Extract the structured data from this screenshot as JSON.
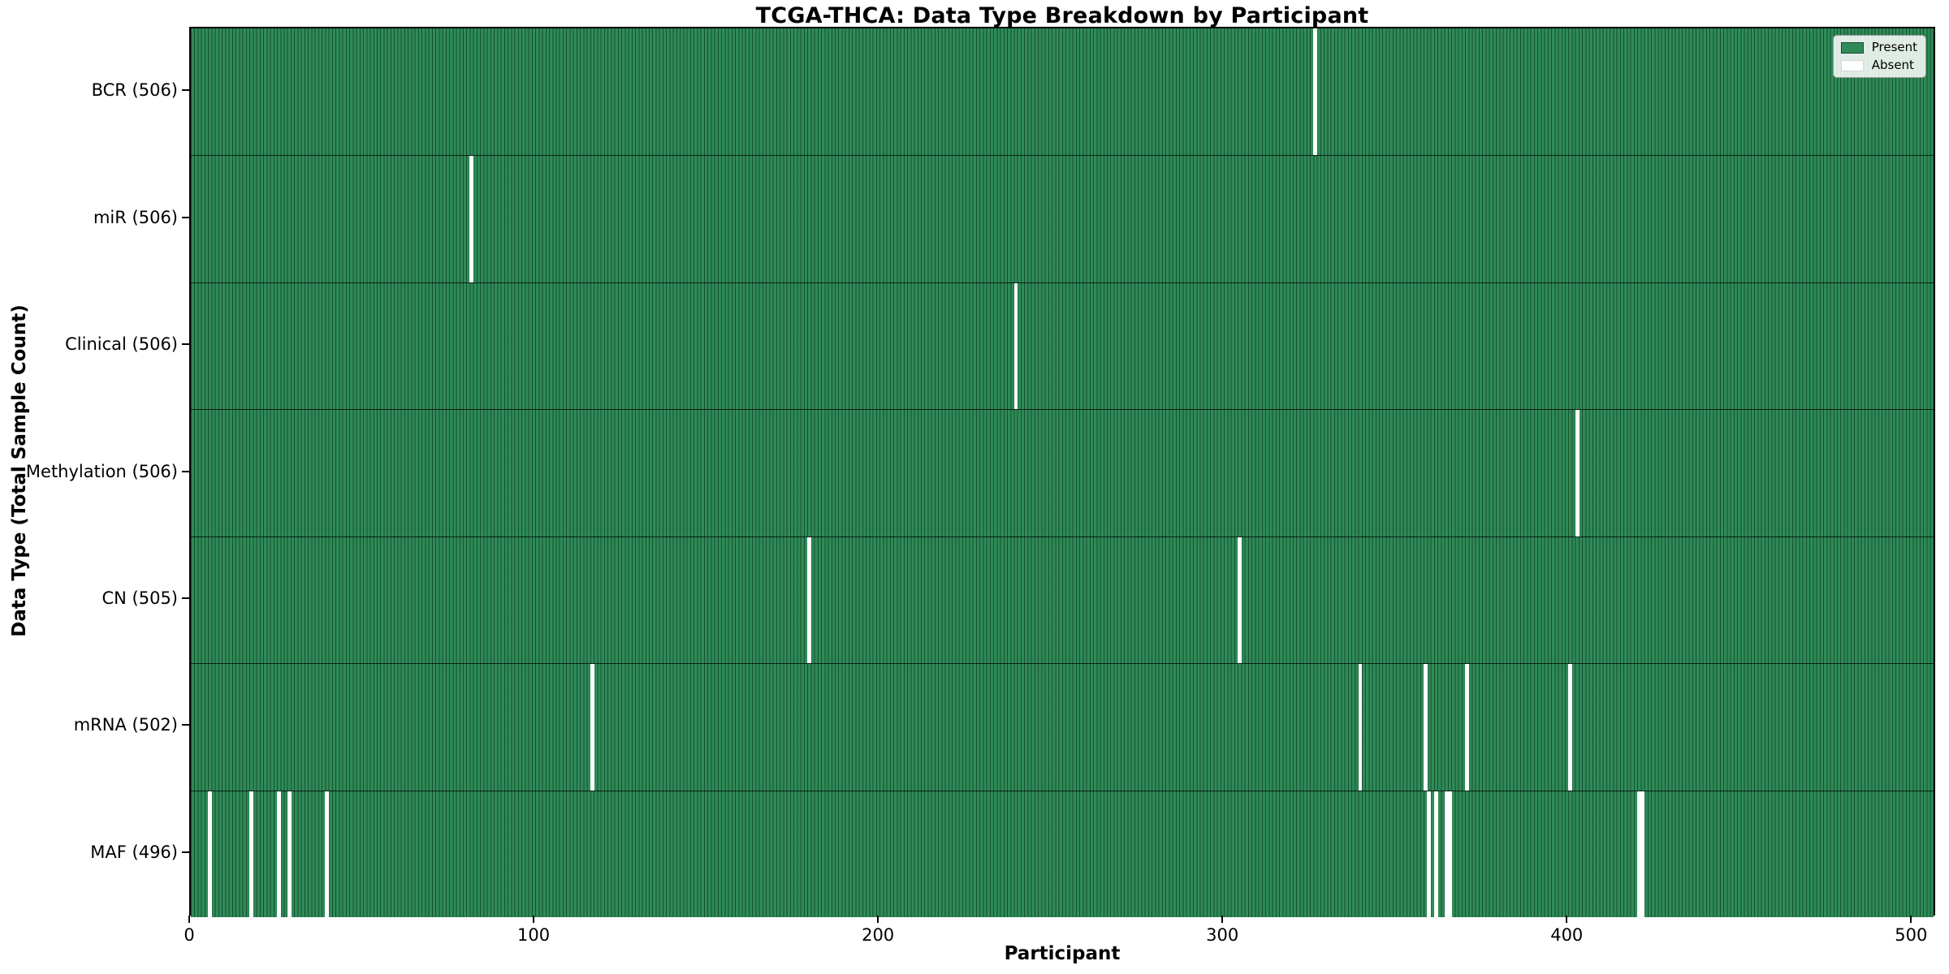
{
  "chart_data": {
    "type": "heatmap",
    "title": "TCGA-THCA: Data Type Breakdown by Participant",
    "xlabel": "Participant",
    "ylabel": "Data Type (Total Sample Count)",
    "x_ticks": [
      0,
      100,
      200,
      300,
      400,
      500
    ],
    "x_range": [
      0,
      507
    ],
    "n_participants": 507,
    "grid": false,
    "legend": {
      "position": "upper right",
      "present_label": "Present",
      "absent_label": "Absent"
    },
    "colors": {
      "present": "#2e8b57",
      "absent": "#ffffff",
      "bar_edge": "#14361f",
      "row_divider": "#000000"
    },
    "rows": [
      {
        "label": "BCR (506)",
        "data_type": "BCR",
        "total_samples": 506,
        "absent_participants": [
          326
        ]
      },
      {
        "label": "miR (506)",
        "data_type": "miR",
        "total_samples": 506,
        "absent_participants": [
          81
        ]
      },
      {
        "label": "Clinical (506)",
        "data_type": "Clinical",
        "total_samples": 506,
        "absent_participants": [
          239
        ]
      },
      {
        "label": "Methylation (506)",
        "data_type": "Methylation",
        "total_samples": 506,
        "absent_participants": [
          402
        ]
      },
      {
        "label": "CN (505)",
        "data_type": "CN",
        "total_samples": 505,
        "absent_participants": [
          179,
          304
        ]
      },
      {
        "label": "mRNA (502)",
        "data_type": "mRNA",
        "total_samples": 502,
        "absent_participants": [
          116,
          339,
          358,
          370,
          400
        ]
      },
      {
        "label": "MAF (496)",
        "data_type": "MAF",
        "total_samples": 496,
        "absent_participants": [
          5,
          17,
          25,
          28,
          39,
          359,
          361,
          364,
          365,
          420,
          421
        ]
      }
    ]
  }
}
